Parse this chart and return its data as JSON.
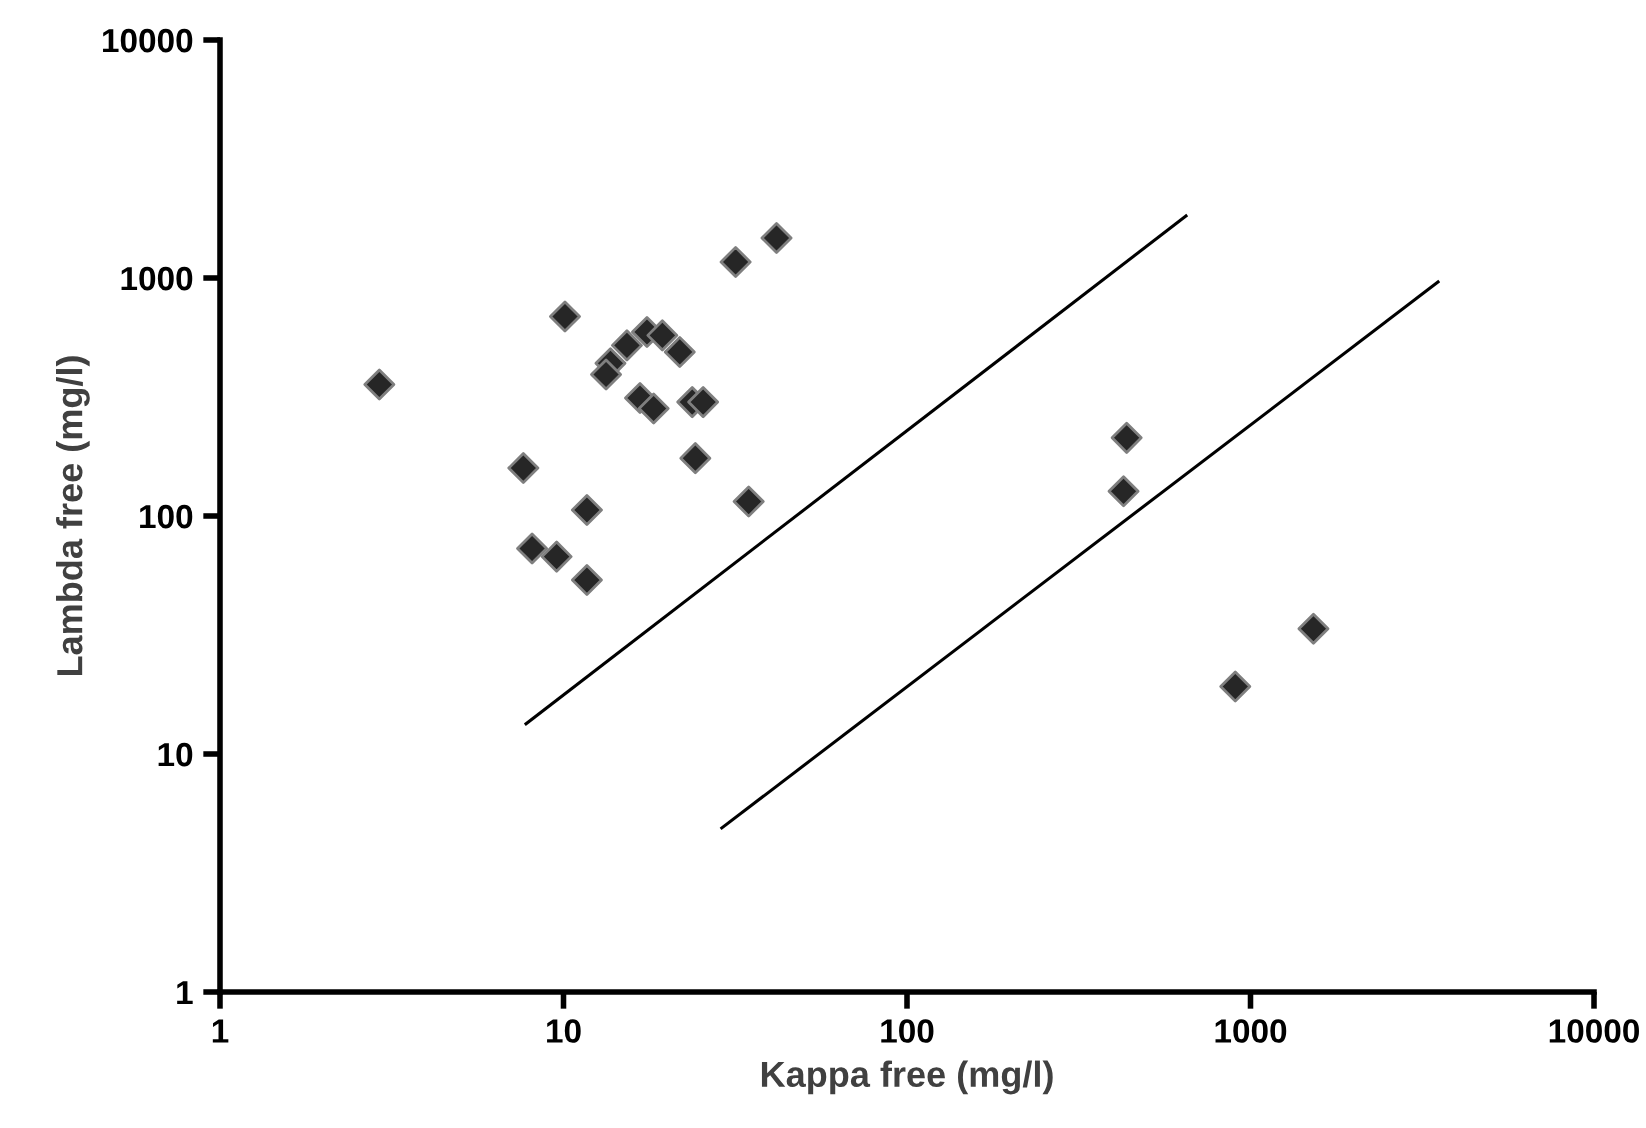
{
  "chart_data": {
    "type": "scatter",
    "xlabel": "Kappa free (mg/l)",
    "ylabel": "Lambda free (mg/l)",
    "log": "xy",
    "grid": false,
    "legend": false,
    "xlim": [
      1,
      10000
    ],
    "ylim": [
      1,
      10000
    ],
    "xticks": [
      1,
      10,
      100,
      1000,
      10000
    ],
    "yticks": [
      1,
      10,
      100,
      1000,
      10000
    ],
    "series": [
      {
        "marker": "diamond",
        "color": "#262626",
        "x": [
          2.91,
          10.1,
          31.7,
          41.7,
          15.3,
          17.5,
          19.4,
          21.8,
          13.7,
          13.3,
          16.7,
          18.3,
          23.7,
          25.5,
          24.2,
          34.6,
          7.64,
          11.7,
          8.1,
          9.55,
          11.7,
          436,
          427,
          1525,
          903
        ],
        "values": [
          357,
          689,
          1168,
          1473,
          521,
          593,
          574,
          489,
          438,
          393,
          313,
          283,
          301,
          301,
          175,
          115,
          159,
          106,
          73,
          67.5,
          53.8,
          213,
          127,
          33.6,
          19.2
        ]
      },
      {
        "type": "line",
        "marker": "none",
        "color": "#000000",
        "line_style": "solid",
        "x": [
          7.78,
          649
        ],
        "values": [
          13.4,
          1823
        ]
      },
      {
        "type": "line",
        "marker": "none",
        "color": "#000000",
        "line_style": "solid",
        "x": [
          28.9,
          3515
        ],
        "values": [
          4.89,
          962
        ]
      }
    ]
  }
}
